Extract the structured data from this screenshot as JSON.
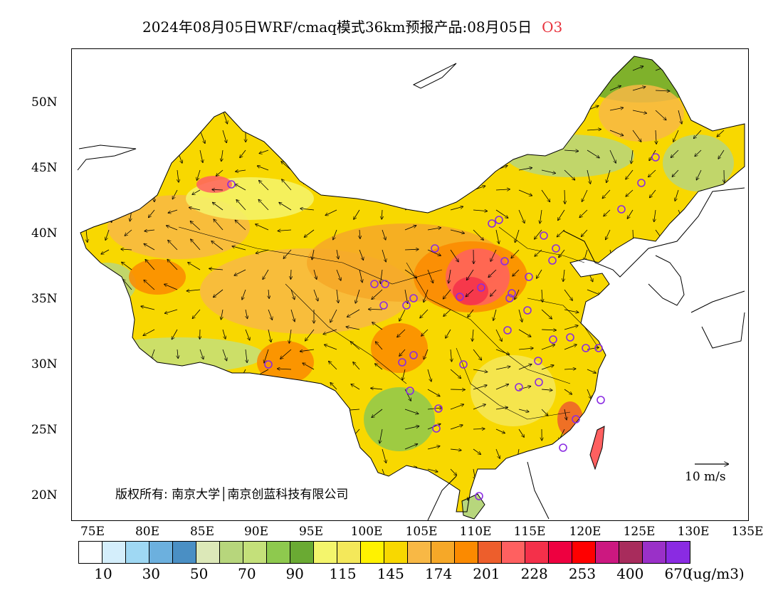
{
  "title": {
    "main": "2024年08月05日WRF/cmaq模式36km预报产品:08月05日",
    "species": "O3"
  },
  "lat_ticks": [
    "50N",
    "45N",
    "40N",
    "35N",
    "30N",
    "25N",
    "20N"
  ],
  "lon_ticks": [
    "75E",
    "80E",
    "85E",
    "90E",
    "95E",
    "100E",
    "105E",
    "110E",
    "115E",
    "120E",
    "125E",
    "130E",
    "135E"
  ],
  "copyright": "版权所有: 南京大学│南京创蓝科技有限公司",
  "wind_scale": "10 m/s",
  "legend": {
    "colors": [
      "#ffffff",
      "#d4eefb",
      "#9fd8f3",
      "#6cb0de",
      "#4a8fc4",
      "#dce8b8",
      "#b7d67c",
      "#c4e07a",
      "#8ec94e",
      "#6aaa33",
      "#f4f56c",
      "#f4e85a",
      "#fff200",
      "#f8d800",
      "#f8b845",
      "#f6a828",
      "#fb8a00",
      "#ed5e2c",
      "#ff6060",
      "#f4304a",
      "#ee0040",
      "#ff0000",
      "#cc1880",
      "#a82c5c",
      "#9a30c8",
      "#8a2be2"
    ],
    "labels": [
      "10",
      "30",
      "50",
      "70",
      "90",
      "115",
      "145",
      "174",
      "201",
      "228",
      "253",
      "400",
      "670"
    ],
    "unit": "(ug/m3)"
  },
  "map": {
    "extent_lon": [
      73,
      135
    ],
    "extent_lat": [
      18,
      54
    ],
    "city_markers_color": "#8a2be2",
    "land_outline": "#000000"
  }
}
